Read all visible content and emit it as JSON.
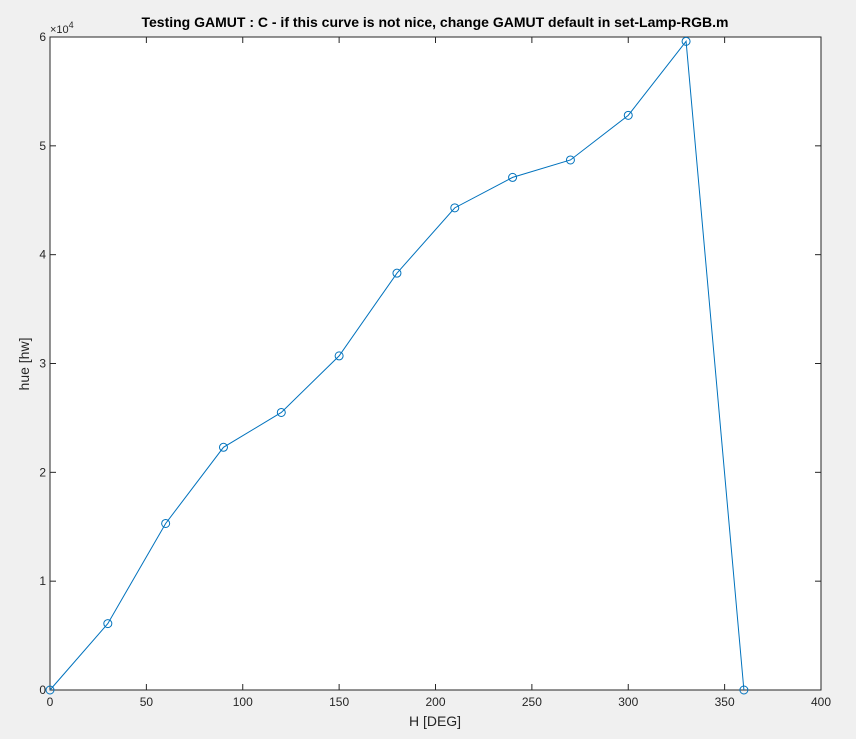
{
  "window": {
    "background": "#f0f0f0"
  },
  "chart_data": {
    "type": "line",
    "title": "Testing GAMUT : C - if this curve is not nice, change GAMUT default in set-Lamp-RGB.m",
    "xlabel": "H  [DEG]",
    "ylabel": "hue [hw]",
    "xlim": [
      0,
      400
    ],
    "ylim": [
      0,
      60000
    ],
    "x_ticks": [
      0,
      50,
      100,
      150,
      200,
      250,
      300,
      350,
      400
    ],
    "y_ticks": [
      0,
      10000,
      20000,
      30000,
      40000,
      50000,
      60000
    ],
    "y_tick_labels": [
      "0",
      "1",
      "2",
      "3",
      "4",
      "5",
      "6"
    ],
    "y_exponent": {
      "base": "×10",
      "power": "4"
    },
    "grid": false,
    "marker": "circle",
    "line_color": "#0072bd",
    "series": [
      {
        "x": [
          0,
          30,
          60,
          90,
          120,
          150,
          180,
          210,
          240,
          270,
          300,
          330,
          360
        ],
        "y": [
          0,
          6100,
          15300,
          22300,
          25500,
          30700,
          38300,
          44300,
          47100,
          48700,
          52800,
          59600,
          0
        ]
      }
    ]
  }
}
